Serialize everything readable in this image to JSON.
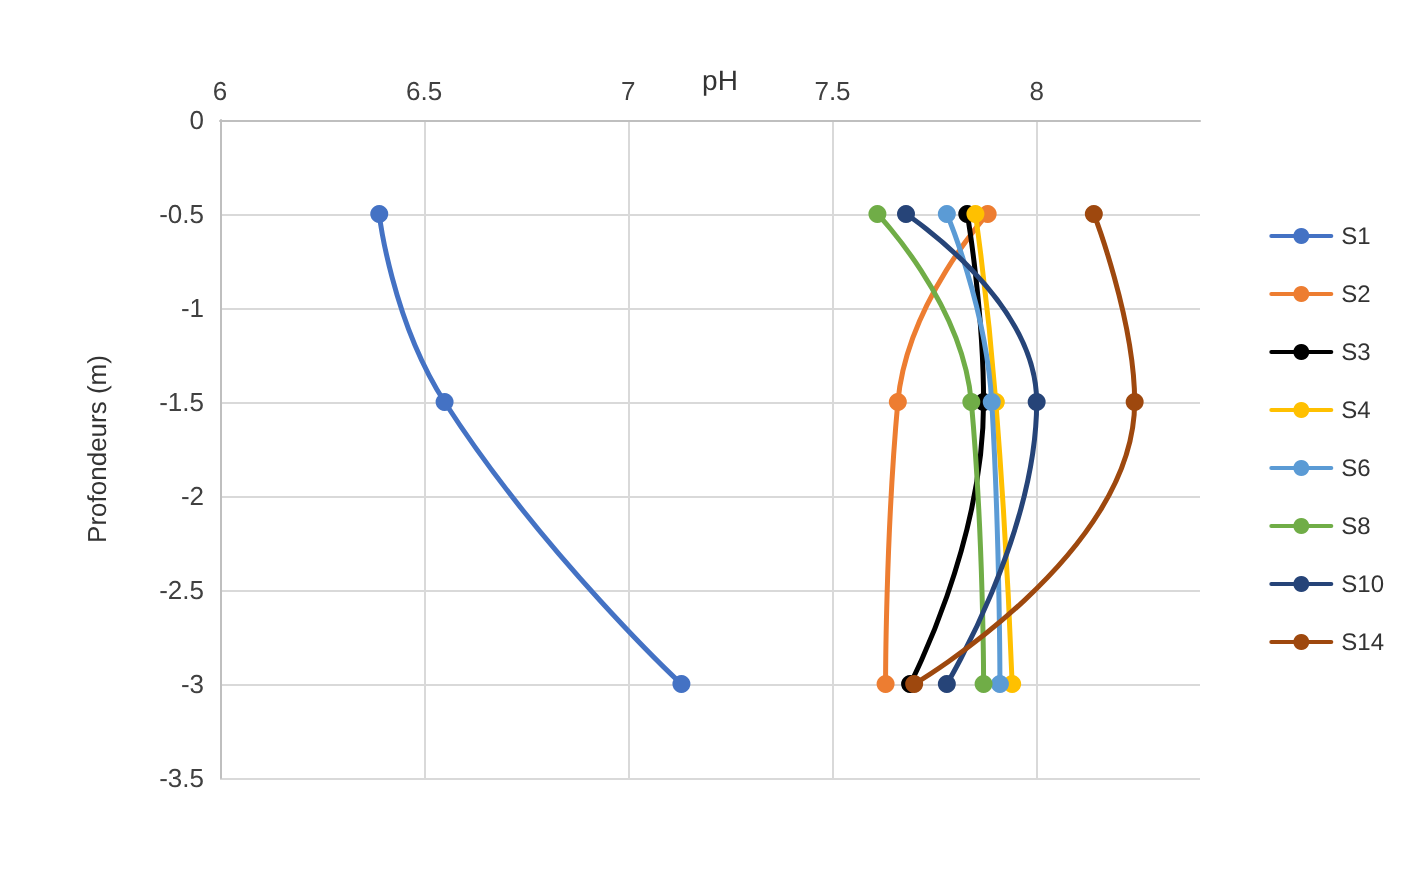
{
  "chart_data": {
    "type": "line",
    "title": "pH",
    "ylabel": "Profondeurs (m)",
    "xlim": [
      6,
      8.4
    ],
    "xticks": [
      6,
      6.5,
      7,
      7.5,
      8
    ],
    "ylim": [
      -3.5,
      0
    ],
    "yticks": [
      0,
      -0.5,
      -1,
      -1.5,
      -2,
      -2.5,
      -3,
      -3.5
    ],
    "grid": true,
    "legend": "right",
    "marker": "circle",
    "line_style": "solid",
    "series": [
      {
        "name": "S1",
        "color": "#4472c4",
        "x": [
          6.39,
          6.55,
          7.13
        ],
        "values": [
          -0.5,
          -1.5,
          -3
        ]
      },
      {
        "name": "S2",
        "color": "#ed7d31",
        "x": [
          7.88,
          7.66,
          7.63
        ],
        "values": [
          -0.5,
          -1.5,
          -3
        ]
      },
      {
        "name": "S3",
        "color": "#000000",
        "x": [
          7.83,
          7.87,
          7.69
        ],
        "values": [
          -0.5,
          -1.5,
          -3
        ]
      },
      {
        "name": "S4",
        "color": "#ffc000",
        "x": [
          7.85,
          7.9,
          7.94
        ],
        "values": [
          -0.5,
          -1.5,
          -3
        ]
      },
      {
        "name": "S6",
        "color": "#5b9bd5",
        "x": [
          7.78,
          7.89,
          7.91
        ],
        "values": [
          -0.5,
          -1.5,
          -3
        ]
      },
      {
        "name": "S8",
        "color": "#70ad47",
        "x": [
          7.61,
          7.84,
          7.87
        ],
        "values": [
          -0.5,
          -1.5,
          -3
        ]
      },
      {
        "name": "S10",
        "color": "#264478",
        "x": [
          7.68,
          8.0,
          7.78
        ],
        "values": [
          -0.5,
          -1.5,
          -3
        ]
      },
      {
        "name": "S14",
        "color": "#9e480e",
        "x": [
          8.14,
          8.24,
          7.7
        ],
        "values": [
          -0.5,
          -1.5,
          -3
        ]
      }
    ]
  }
}
